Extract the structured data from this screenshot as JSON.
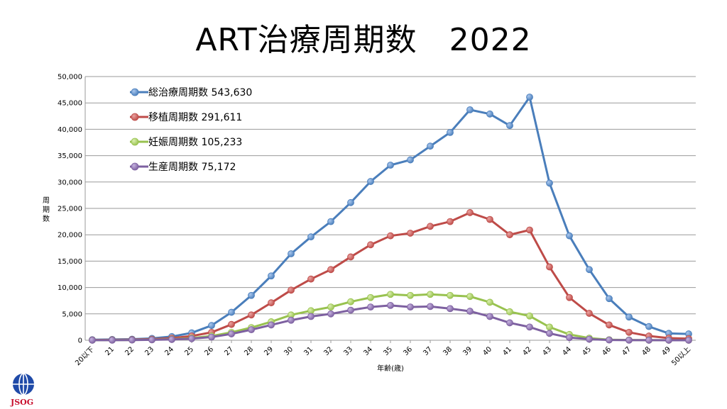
{
  "title": "ART治療周期数　2022",
  "logo_text": "JSOG",
  "chart_data": {
    "type": "line",
    "title": "ART治療周期数　2022",
    "xlabel": "年齢(歳)",
    "ylabel": "周期数",
    "ylim": [
      0,
      50000
    ],
    "yticks": [
      0,
      5000,
      10000,
      15000,
      20000,
      25000,
      30000,
      35000,
      40000,
      45000,
      50000
    ],
    "ytick_labels": [
      "0",
      "5,000",
      "10,000",
      "15,000",
      "20,000",
      "25,000",
      "30,000",
      "35,000",
      "40,000",
      "45,000",
      "50,000"
    ],
    "grid": true,
    "legend_position": "top-left",
    "categories": [
      "20以下",
      "21",
      "22",
      "23",
      "24",
      "25",
      "26",
      "27",
      "28",
      "29",
      "30",
      "31",
      "32",
      "33",
      "34",
      "35",
      "36",
      "37",
      "38",
      "39",
      "40",
      "41",
      "42",
      "43",
      "44",
      "45",
      "46",
      "47",
      "48",
      "49",
      "50以上"
    ],
    "series": [
      {
        "name": "総治療周期数 543,630",
        "color": "#4a7ebb",
        "values": [
          100,
          150,
          200,
          350,
          700,
          1400,
          2800,
          5300,
          8500,
          12200,
          16400,
          19600,
          22500,
          26100,
          30100,
          33200,
          34200,
          36800,
          39400,
          43700,
          42900,
          40700,
          46100,
          29800,
          19800,
          13400,
          7900,
          4400,
          2600,
          1300,
          1200
        ]
      },
      {
        "name": "移植周期数 291,611",
        "color": "#be4b48",
        "values": [
          50,
          80,
          120,
          200,
          400,
          800,
          1500,
          3000,
          4800,
          7100,
          9500,
          11600,
          13400,
          15800,
          18100,
          19800,
          20300,
          21600,
          22500,
          24200,
          22900,
          20000,
          20900,
          13900,
          8100,
          5100,
          2900,
          1500,
          800,
          400,
          300
        ]
      },
      {
        "name": "妊娠周期数 105,233",
        "color": "#98c24f",
        "values": [
          20,
          30,
          50,
          100,
          200,
          400,
          800,
          1500,
          2400,
          3500,
          4800,
          5600,
          6300,
          7300,
          8100,
          8700,
          8500,
          8700,
          8500,
          8300,
          7200,
          5400,
          4600,
          2500,
          1100,
          400,
          100,
          50,
          20,
          10,
          5
        ]
      },
      {
        "name": "生産周期数 75,172",
        "color": "#7d60a0",
        "values": [
          10,
          20,
          40,
          80,
          150,
          300,
          600,
          1200,
          2000,
          2900,
          3800,
          4500,
          5000,
          5700,
          6300,
          6600,
          6300,
          6400,
          6000,
          5500,
          4500,
          3300,
          2500,
          1300,
          500,
          200,
          50,
          20,
          10,
          5,
          3
        ]
      }
    ]
  }
}
